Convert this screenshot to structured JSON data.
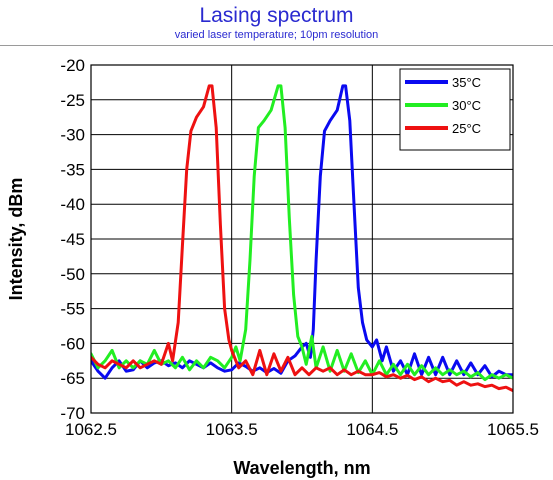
{
  "header": {
    "title": "Lasing spectrum",
    "subtitle": "varied laser temperature; 10pm resolution"
  },
  "chart_data": {
    "type": "line",
    "xlabel": "Wavelength, nm",
    "ylabel": "Intensity, dBm",
    "xlim": [
      1062.5,
      1065.5
    ],
    "ylim": [
      -70,
      -20
    ],
    "xticks": [
      "1062.5",
      "1063.5",
      "1064.5",
      "1065.5"
    ],
    "yticks": [
      "-20",
      "-25",
      "-30",
      "-35",
      "-40",
      "-45",
      "-50",
      "-55",
      "-60",
      "-65",
      "-70"
    ],
    "grid": true,
    "legend_position": "top-right",
    "series": [
      {
        "name": "35°C",
        "color": "#0a0af0",
        "points": [
          [
            1062.5,
            -62.5
          ],
          [
            1062.55,
            -64.0
          ],
          [
            1062.6,
            -65.0
          ],
          [
            1062.65,
            -63.5
          ],
          [
            1062.7,
            -62.5
          ],
          [
            1062.75,
            -64.0
          ],
          [
            1062.8,
            -63.8
          ],
          [
            1062.85,
            -62.5
          ],
          [
            1062.9,
            -63.5
          ],
          [
            1062.95,
            -62.8
          ],
          [
            1063.0,
            -62.5
          ],
          [
            1063.05,
            -63.2
          ],
          [
            1063.1,
            -62.8
          ],
          [
            1063.15,
            -63.5
          ],
          [
            1063.2,
            -62.5
          ],
          [
            1063.25,
            -63.0
          ],
          [
            1063.3,
            -63.5
          ],
          [
            1063.35,
            -62.8
          ],
          [
            1063.4,
            -63.5
          ],
          [
            1063.45,
            -64.0
          ],
          [
            1063.5,
            -63.8
          ],
          [
            1063.55,
            -62.8
          ],
          [
            1063.6,
            -63.3
          ],
          [
            1063.65,
            -64.0
          ],
          [
            1063.7,
            -63.5
          ],
          [
            1063.75,
            -64.2
          ],
          [
            1063.8,
            -63.6
          ],
          [
            1063.85,
            -64.3
          ],
          [
            1063.9,
            -62.5
          ],
          [
            1063.95,
            -61.8
          ],
          [
            1064.0,
            -60.5
          ],
          [
            1064.03,
            -60.0
          ],
          [
            1064.06,
            -62.0
          ],
          [
            1064.08,
            -58.0
          ],
          [
            1064.1,
            -48.0
          ],
          [
            1064.13,
            -36.0
          ],
          [
            1064.16,
            -29.5
          ],
          [
            1064.2,
            -28.0
          ],
          [
            1064.25,
            -26.5
          ],
          [
            1064.29,
            -23.0
          ],
          [
            1064.31,
            -23.0
          ],
          [
            1064.34,
            -28.0
          ],
          [
            1064.37,
            -40.0
          ],
          [
            1064.4,
            -52.0
          ],
          [
            1064.43,
            -57.0
          ],
          [
            1064.46,
            -59.5
          ],
          [
            1064.5,
            -60.5
          ],
          [
            1064.53,
            -59.5
          ],
          [
            1064.57,
            -62.5
          ],
          [
            1064.6,
            -60.5
          ],
          [
            1064.65,
            -64.0
          ],
          [
            1064.7,
            -62.5
          ],
          [
            1064.75,
            -64.5
          ],
          [
            1064.8,
            -61.5
          ],
          [
            1064.85,
            -64.5
          ],
          [
            1064.9,
            -62.0
          ],
          [
            1064.95,
            -64.5
          ],
          [
            1065.0,
            -62.0
          ],
          [
            1065.05,
            -64.5
          ],
          [
            1065.1,
            -62.5
          ],
          [
            1065.15,
            -64.5
          ],
          [
            1065.2,
            -62.8
          ],
          [
            1065.25,
            -64.5
          ],
          [
            1065.3,
            -63.2
          ],
          [
            1065.35,
            -64.8
          ],
          [
            1065.4,
            -64.0
          ],
          [
            1065.45,
            -64.5
          ],
          [
            1065.5,
            -64.5
          ]
        ]
      },
      {
        "name": "30°C",
        "color": "#22ee22",
        "points": [
          [
            1062.5,
            -61.5
          ],
          [
            1062.55,
            -63.5
          ],
          [
            1062.6,
            -62.5
          ],
          [
            1062.65,
            -61.0
          ],
          [
            1062.7,
            -63.5
          ],
          [
            1062.75,
            -62.5
          ],
          [
            1062.8,
            -63.5
          ],
          [
            1062.85,
            -62.5
          ],
          [
            1062.9,
            -63.0
          ],
          [
            1062.95,
            -61.0
          ],
          [
            1063.0,
            -63.0
          ],
          [
            1063.05,
            -62.5
          ],
          [
            1063.1,
            -63.5
          ],
          [
            1063.15,
            -62.0
          ],
          [
            1063.2,
            -63.8
          ],
          [
            1063.25,
            -62.5
          ],
          [
            1063.3,
            -63.5
          ],
          [
            1063.35,
            -62.0
          ],
          [
            1063.4,
            -62.5
          ],
          [
            1063.45,
            -63.5
          ],
          [
            1063.5,
            -62.0
          ],
          [
            1063.53,
            -60.5
          ],
          [
            1063.56,
            -62.5
          ],
          [
            1063.6,
            -58.0
          ],
          [
            1063.63,
            -48.0
          ],
          [
            1063.66,
            -36.0
          ],
          [
            1063.69,
            -29.0
          ],
          [
            1063.73,
            -28.0
          ],
          [
            1063.78,
            -26.5
          ],
          [
            1063.83,
            -23.0
          ],
          [
            1063.85,
            -23.0
          ],
          [
            1063.88,
            -29.0
          ],
          [
            1063.91,
            -42.0
          ],
          [
            1063.94,
            -53.0
          ],
          [
            1063.97,
            -59.0
          ],
          [
            1064.0,
            -60.5
          ],
          [
            1064.03,
            -63.0
          ],
          [
            1064.07,
            -59.0
          ],
          [
            1064.1,
            -63.5
          ],
          [
            1064.15,
            -60.5
          ],
          [
            1064.2,
            -64.0
          ],
          [
            1064.25,
            -61.0
          ],
          [
            1064.3,
            -64.0
          ],
          [
            1064.35,
            -61.5
          ],
          [
            1064.4,
            -64.2
          ],
          [
            1064.45,
            -62.5
          ],
          [
            1064.5,
            -64.5
          ],
          [
            1064.55,
            -62.5
          ],
          [
            1064.6,
            -64.5
          ],
          [
            1064.65,
            -63.0
          ],
          [
            1064.7,
            -64.5
          ],
          [
            1064.75,
            -63.0
          ],
          [
            1064.8,
            -64.5
          ],
          [
            1064.85,
            -63.2
          ],
          [
            1064.9,
            -64.5
          ],
          [
            1064.95,
            -63.5
          ],
          [
            1065.0,
            -64.5
          ],
          [
            1065.05,
            -63.8
          ],
          [
            1065.1,
            -64.5
          ],
          [
            1065.15,
            -64.0
          ],
          [
            1065.2,
            -64.8
          ],
          [
            1065.25,
            -64.2
          ],
          [
            1065.3,
            -65.2
          ],
          [
            1065.35,
            -64.5
          ],
          [
            1065.4,
            -65.0
          ],
          [
            1065.45,
            -64.5
          ],
          [
            1065.5,
            -65.0
          ]
        ]
      },
      {
        "name": "25°C",
        "color": "#ee1111",
        "points": [
          [
            1062.5,
            -62.0
          ],
          [
            1062.55,
            -63.0
          ],
          [
            1062.6,
            -63.5
          ],
          [
            1062.65,
            -62.5
          ],
          [
            1062.7,
            -63.0
          ],
          [
            1062.75,
            -63.5
          ],
          [
            1062.8,
            -62.5
          ],
          [
            1062.85,
            -63.5
          ],
          [
            1062.9,
            -63.0
          ],
          [
            1062.95,
            -62.5
          ],
          [
            1063.0,
            -63.0
          ],
          [
            1063.05,
            -60.0
          ],
          [
            1063.08,
            -62.5
          ],
          [
            1063.12,
            -57.0
          ],
          [
            1063.15,
            -46.0
          ],
          [
            1063.18,
            -35.0
          ],
          [
            1063.21,
            -29.5
          ],
          [
            1063.25,
            -27.5
          ],
          [
            1063.3,
            -26.0
          ],
          [
            1063.34,
            -23.0
          ],
          [
            1063.36,
            -23.0
          ],
          [
            1063.39,
            -29.0
          ],
          [
            1063.42,
            -43.0
          ],
          [
            1063.45,
            -55.0
          ],
          [
            1063.48,
            -59.5
          ],
          [
            1063.5,
            -61.0
          ],
          [
            1063.55,
            -63.5
          ],
          [
            1063.6,
            -62.5
          ],
          [
            1063.65,
            -64.5
          ],
          [
            1063.7,
            -61.0
          ],
          [
            1063.75,
            -64.5
          ],
          [
            1063.8,
            -61.5
          ],
          [
            1063.85,
            -64.0
          ],
          [
            1063.9,
            -62.0
          ],
          [
            1063.95,
            -64.5
          ],
          [
            1064.0,
            -63.5
          ],
          [
            1064.05,
            -64.5
          ],
          [
            1064.1,
            -63.5
          ],
          [
            1064.15,
            -64.0
          ],
          [
            1064.2,
            -63.5
          ],
          [
            1064.25,
            -64.5
          ],
          [
            1064.3,
            -63.8
          ],
          [
            1064.35,
            -64.5
          ],
          [
            1064.4,
            -64.0
          ],
          [
            1064.45,
            -64.5
          ],
          [
            1064.5,
            -64.5
          ],
          [
            1064.55,
            -64.2
          ],
          [
            1064.6,
            -64.8
          ],
          [
            1064.65,
            -64.5
          ],
          [
            1064.7,
            -65.0
          ],
          [
            1064.75,
            -64.6
          ],
          [
            1064.8,
            -65.2
          ],
          [
            1064.85,
            -64.8
          ],
          [
            1064.9,
            -65.5
          ],
          [
            1064.95,
            -65.0
          ],
          [
            1065.0,
            -65.5
          ],
          [
            1065.05,
            -65.3
          ],
          [
            1065.1,
            -66.0
          ],
          [
            1065.15,
            -65.5
          ],
          [
            1065.2,
            -66.0
          ],
          [
            1065.25,
            -65.8
          ],
          [
            1065.3,
            -66.2
          ],
          [
            1065.35,
            -66.0
          ],
          [
            1065.4,
            -66.5
          ],
          [
            1065.45,
            -66.3
          ],
          [
            1065.5,
            -66.8
          ]
        ]
      }
    ]
  }
}
